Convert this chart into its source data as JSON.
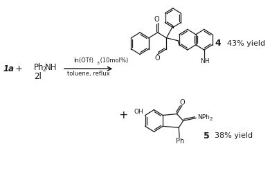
{
  "bg_color": "#ffffff",
  "fig_width": 3.9,
  "fig_height": 2.47,
  "dpi": 100,
  "label_1a": "1a",
  "label_plus1": "+",
  "label_2l": "2l",
  "arrow_text_top": "In(OTf)",
  "arrow_text_bot": "toluene, reflux",
  "label_4": "4",
  "yield_4": "43% yield",
  "label_plus2": "+",
  "label_5": "5",
  "yield_5": "38% yield",
  "text_color": "#1a1a1a",
  "line_color": "#1a1a1a",
  "font_size_main": 8.5,
  "font_size_small": 6.5,
  "font_size_label": 9,
  "font_size_yield": 8.0
}
